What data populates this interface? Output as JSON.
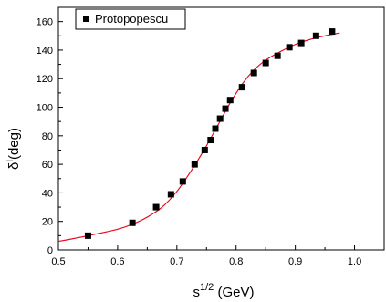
{
  "chart_data": {
    "type": "scatter",
    "x_range": [
      0.5,
      1.05
    ],
    "y_range": [
      0,
      170
    ],
    "x_ticks": [
      0.5,
      0.6,
      0.7,
      0.8,
      0.9,
      1.0
    ],
    "x_tick_labels": [
      "0.5",
      "0.6",
      "0.7",
      "0.8",
      "0.9",
      "1.0"
    ],
    "y_ticks": [
      0,
      20,
      40,
      60,
      80,
      100,
      120,
      140,
      160
    ],
    "y_tick_labels": [
      "0",
      "20",
      "40",
      "60",
      "80",
      "100",
      "120",
      "140",
      "160"
    ],
    "xlabel": {
      "base": "s",
      "sup": "1/2",
      "rest": " (GeV)"
    },
    "ylabel": {
      "base": "δ",
      "sup": "I",
      "sub": "I",
      "rest": "(deg)"
    },
    "legend_position": "top-left",
    "series": [
      {
        "name": "Protopopescu",
        "marker": "square",
        "color": "#000000",
        "x": [
          0.55,
          0.625,
          0.665,
          0.69,
          0.71,
          0.73,
          0.747,
          0.757,
          0.765,
          0.773,
          0.782,
          0.79,
          0.81,
          0.83,
          0.85,
          0.87,
          0.89,
          0.91,
          0.935,
          0.962
        ],
        "y": [
          10,
          19,
          30,
          39,
          48,
          60,
          70,
          77,
          85,
          92,
          99,
          105,
          114,
          124,
          131,
          136,
          142,
          145,
          150,
          153
        ]
      }
    ],
    "fit_curve": {
      "color": "#e8001c",
      "x": [
        0.5,
        0.55,
        0.6,
        0.625,
        0.65,
        0.675,
        0.7,
        0.725,
        0.75,
        0.77,
        0.79,
        0.81,
        0.83,
        0.85,
        0.875,
        0.9,
        0.925,
        0.95,
        0.975
      ],
      "y": [
        6,
        10,
        14.5,
        18,
        23,
        30,
        41,
        56,
        73,
        88,
        103,
        116,
        126,
        133,
        139,
        144,
        147.5,
        150,
        152
      ]
    }
  }
}
